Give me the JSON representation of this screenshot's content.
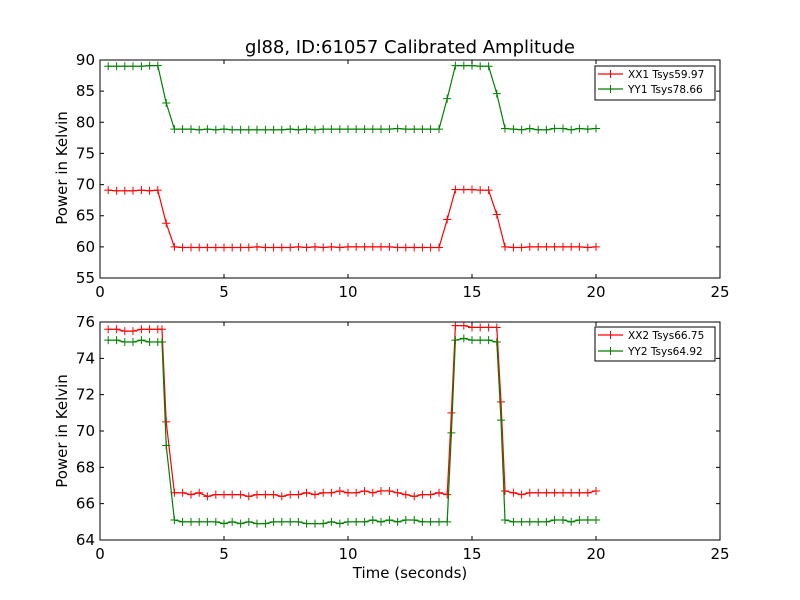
{
  "chart_data": [
    {
      "type": "line",
      "title": "gl88, ID:61057 Calibrated Amplitude",
      "xlabel": "",
      "ylabel": "Power in Kelvin",
      "xlim": [
        0,
        25
      ],
      "ylim": [
        55,
        90
      ],
      "xticks": [
        "0",
        "5",
        "10",
        "15",
        "20",
        "25"
      ],
      "yticks": [
        "55",
        "60",
        "65",
        "70",
        "75",
        "80",
        "85",
        "90"
      ],
      "grid": false,
      "legend_position": "top-right",
      "marker": "plus",
      "x": [
        0.33,
        0.67,
        1.0,
        1.33,
        1.67,
        2.0,
        2.33,
        2.67,
        3.0,
        3.33,
        3.67,
        4.0,
        4.33,
        4.67,
        5.0,
        5.33,
        5.67,
        6.0,
        6.33,
        6.67,
        7.0,
        7.33,
        7.67,
        8.0,
        8.33,
        8.67,
        9.0,
        9.33,
        9.67,
        10.0,
        10.33,
        10.67,
        11.0,
        11.33,
        11.67,
        12.0,
        12.33,
        12.67,
        13.0,
        13.33,
        13.67,
        14.0,
        14.33,
        14.67,
        15.0,
        15.33,
        15.67,
        16.0,
        16.33,
        16.67,
        17.0,
        17.33,
        17.67,
        18.0,
        18.33,
        18.67,
        19.0,
        19.33,
        19.67,
        20.0
      ],
      "series": [
        {
          "name": "XX1 Tsys59.97",
          "color": "#ff0000",
          "values": [
            69.1,
            69.0,
            69.0,
            69.0,
            69.1,
            69.0,
            69.1,
            63.8,
            60.0,
            59.9,
            59.9,
            59.9,
            59.9,
            59.9,
            59.9,
            59.9,
            59.9,
            59.9,
            60.0,
            59.9,
            59.9,
            59.9,
            59.9,
            60.0,
            59.9,
            60.0,
            59.9,
            60.0,
            59.9,
            60.0,
            60.0,
            60.0,
            60.0,
            60.0,
            60.0,
            59.9,
            59.9,
            59.9,
            59.9,
            59.9,
            59.9,
            64.4,
            69.2,
            69.2,
            69.2,
            69.1,
            69.1,
            65.2,
            60.0,
            59.9,
            59.9,
            60.0,
            60.0,
            60.0,
            60.0,
            60.0,
            60.0,
            60.0,
            59.9,
            60.0
          ]
        },
        {
          "name": "YY1 Tsys78.66",
          "color": "#008000",
          "values": [
            89.0,
            89.0,
            89.0,
            89.0,
            89.0,
            89.1,
            89.1,
            83.1,
            78.9,
            78.9,
            78.9,
            78.8,
            78.9,
            78.8,
            78.9,
            78.8,
            78.8,
            78.8,
            78.8,
            78.8,
            78.8,
            78.8,
            78.9,
            78.8,
            78.9,
            78.8,
            78.9,
            78.9,
            78.9,
            78.9,
            78.9,
            78.9,
            78.9,
            78.9,
            78.9,
            79.0,
            78.9,
            78.9,
            78.9,
            78.9,
            78.9,
            83.8,
            89.1,
            89.1,
            89.1,
            89.0,
            89.0,
            84.6,
            79.0,
            78.9,
            78.8,
            79.0,
            78.8,
            78.8,
            79.0,
            79.0,
            78.8,
            79.0,
            78.9,
            79.0
          ]
        }
      ]
    },
    {
      "type": "line",
      "title": "",
      "xlabel": "Time (seconds)",
      "ylabel": "Power in Kelvin",
      "xlim": [
        0,
        25
      ],
      "ylim": [
        64,
        76
      ],
      "xticks": [
        "0",
        "5",
        "10",
        "15",
        "20",
        "25"
      ],
      "yticks": [
        "64",
        "66",
        "68",
        "70",
        "72",
        "74",
        "76"
      ],
      "grid": false,
      "legend_position": "top-right",
      "marker": "plus",
      "x": [
        0.33,
        0.67,
        1.0,
        1.33,
        1.67,
        2.0,
        2.33,
        2.5,
        2.67,
        3.0,
        3.33,
        3.67,
        4.0,
        4.33,
        4.67,
        5.0,
        5.33,
        5.67,
        6.0,
        6.33,
        6.67,
        7.0,
        7.33,
        7.67,
        8.0,
        8.33,
        8.67,
        9.0,
        9.33,
        9.67,
        10.0,
        10.33,
        10.67,
        11.0,
        11.33,
        11.67,
        12.0,
        12.33,
        12.67,
        13.0,
        13.33,
        13.67,
        14.0,
        14.17,
        14.33,
        14.67,
        15.0,
        15.33,
        15.67,
        16.0,
        16.17,
        16.33,
        16.67,
        17.0,
        17.33,
        17.67,
        18.0,
        18.33,
        18.67,
        19.0,
        19.33,
        19.67,
        20.0
      ],
      "series": [
        {
          "name": "XX2 Tsys66.75",
          "color": "#ff0000",
          "values": [
            75.6,
            75.6,
            75.5,
            75.5,
            75.6,
            75.6,
            75.6,
            75.6,
            70.5,
            66.6,
            66.6,
            66.5,
            66.6,
            66.4,
            66.5,
            66.5,
            66.5,
            66.5,
            66.4,
            66.5,
            66.5,
            66.5,
            66.4,
            66.5,
            66.5,
            66.6,
            66.5,
            66.6,
            66.6,
            66.7,
            66.6,
            66.6,
            66.7,
            66.6,
            66.7,
            66.7,
            66.6,
            66.5,
            66.4,
            66.5,
            66.5,
            66.6,
            66.5,
            71.0,
            75.8,
            75.8,
            75.7,
            75.7,
            75.7,
            75.7,
            71.6,
            66.7,
            66.6,
            66.5,
            66.6,
            66.6,
            66.6,
            66.6,
            66.6,
            66.6,
            66.6,
            66.6,
            66.7
          ],
          "x": [
            0.33,
            0.67,
            1.0,
            1.33,
            1.67,
            2.0,
            2.33,
            2.5,
            2.67,
            3.0,
            3.33,
            3.67,
            4.0,
            4.33,
            4.67,
            5.0,
            5.33,
            5.67,
            6.0,
            6.33,
            6.67,
            7.0,
            7.33,
            7.67,
            8.0,
            8.33,
            8.67,
            9.0,
            9.33,
            9.67,
            10.0,
            10.33,
            10.67,
            11.0,
            11.33,
            11.67,
            12.0,
            12.33,
            12.67,
            13.0,
            13.33,
            13.67,
            14.0,
            14.17,
            14.33,
            14.67,
            15.0,
            15.33,
            15.67,
            16.0,
            16.17,
            16.33,
            16.67,
            17.0,
            17.33,
            17.67,
            18.0,
            18.33,
            18.67,
            19.0,
            19.33,
            19.67,
            20.0
          ]
        },
        {
          "name": "YY2 Tsys64.92",
          "color": "#008000",
          "values": [
            75.0,
            75.0,
            74.9,
            74.9,
            75.0,
            74.9,
            74.9,
            74.9,
            69.2,
            65.1,
            65.0,
            65.0,
            65.0,
            65.0,
            65.0,
            64.9,
            65.0,
            64.9,
            65.0,
            64.9,
            64.9,
            65.0,
            65.0,
            65.0,
            65.0,
            64.9,
            64.9,
            64.9,
            65.0,
            64.9,
            65.0,
            65.0,
            65.0,
            65.1,
            65.0,
            65.1,
            65.0,
            65.1,
            65.1,
            65.0,
            65.0,
            65.0,
            65.0,
            69.9,
            75.0,
            75.1,
            75.0,
            75.0,
            75.0,
            74.9,
            70.6,
            65.1,
            65.0,
            65.0,
            65.0,
            65.0,
            65.0,
            65.1,
            65.1,
            65.0,
            65.1,
            65.1,
            65.1
          ]
        }
      ]
    }
  ]
}
